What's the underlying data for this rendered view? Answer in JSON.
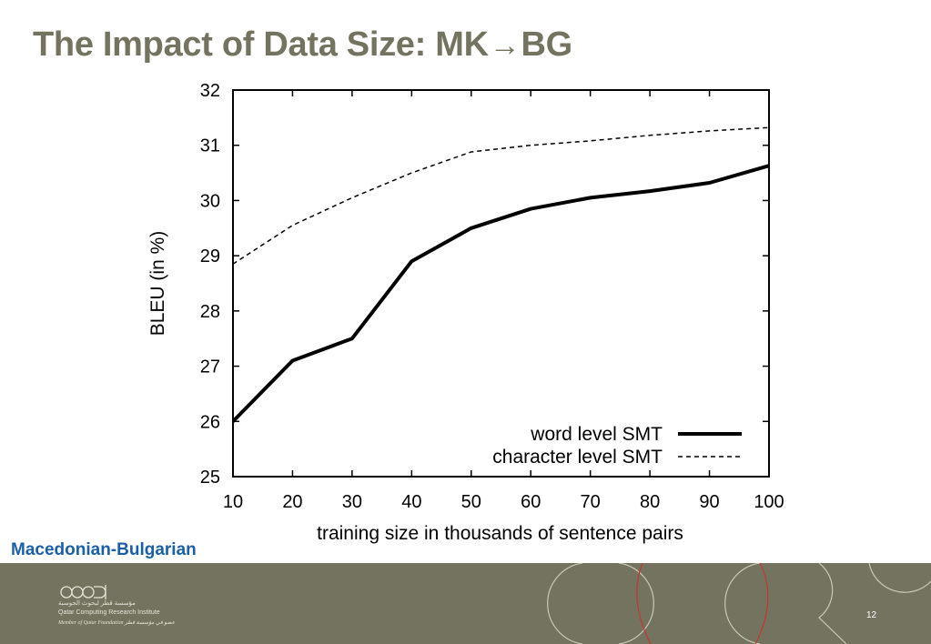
{
  "slide": {
    "title_prefix": "The Impact of Data Size: MK",
    "title_arrow": "→",
    "title_suffix": "BG",
    "language_pair_label": "Macedonian-Bulgarian",
    "page_number": "12"
  },
  "footer": {
    "org_name_arabic": "مؤسسة قطر لبحوث الحوسبة",
    "org_name": "Qatar Computing Research Institute",
    "member_text": "Member of Qatar Foundation عضو في مؤسسة قطر",
    "logo": "qcri-logo"
  },
  "colors": {
    "title": "#74735f",
    "footer_bg": "#74735f",
    "language_label": "#1a5fa8",
    "footer_accent": "#c0392b"
  },
  "chart_data": {
    "type": "line",
    "title": "",
    "xlabel": "training size in thousands of sentence pairs",
    "ylabel": "BLEU (in %)",
    "x": [
      10,
      20,
      30,
      40,
      50,
      60,
      70,
      80,
      90,
      100
    ],
    "xlim": [
      10,
      100
    ],
    "ylim": [
      25,
      32
    ],
    "xticks": [
      10,
      20,
      30,
      40,
      50,
      60,
      70,
      80,
      90,
      100
    ],
    "yticks": [
      25,
      26,
      27,
      28,
      29,
      30,
      31,
      32
    ],
    "grid": false,
    "legend_position": "bottom-right",
    "series": [
      {
        "name": "word level SMT",
        "style": "solid-thick",
        "values": [
          26.0,
          27.1,
          27.5,
          28.9,
          29.5,
          29.85,
          30.05,
          30.17,
          30.32,
          30.63
        ]
      },
      {
        "name": "character level SMT",
        "style": "dashed",
        "values": [
          28.85,
          29.55,
          30.05,
          30.5,
          30.88,
          31.0,
          31.08,
          31.18,
          31.26,
          31.32
        ]
      }
    ]
  }
}
